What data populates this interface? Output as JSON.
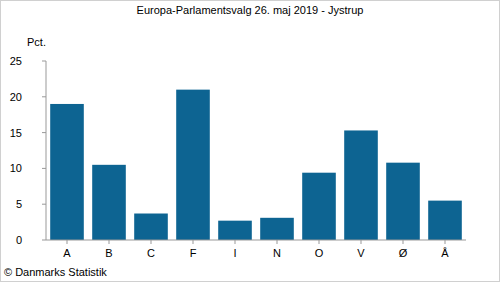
{
  "chart_data": {
    "type": "bar",
    "title": "Europa-Parlamentsvalg 26. maj 2019 - Jystrup",
    "y_label": "Pct.",
    "source": "© Danmarks Statistik",
    "categories": [
      "A",
      "B",
      "C",
      "F",
      "I",
      "N",
      "O",
      "V",
      "Ø",
      "Å"
    ],
    "values": [
      19.0,
      10.5,
      3.7,
      21.0,
      2.7,
      3.1,
      9.4,
      15.3,
      10.8,
      5.5
    ],
    "color": "#0d6492",
    "ylim": [
      0,
      25
    ],
    "yticks": [
      0,
      5,
      10,
      15,
      20,
      25
    ],
    "grid": false
  }
}
